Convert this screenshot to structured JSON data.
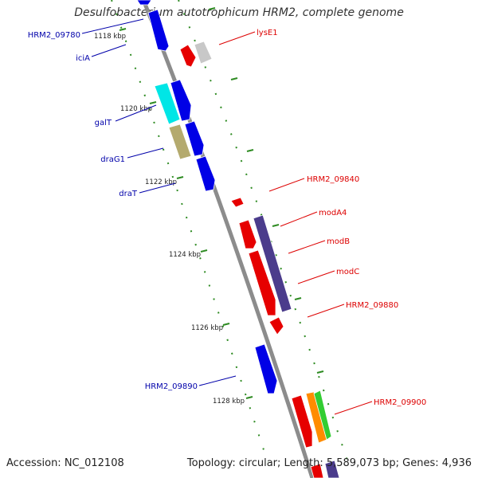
{
  "title": "Desulfobacterium autotrophicum HRM2, complete genome",
  "footer": {
    "accession": "Accession: NC_012108",
    "topology": "Topology: circular; Length: 5,589,073 bp; Genes: 4,936"
  },
  "colors": {
    "backbone": "#8c8c8c",
    "forward_strand": "#0000e6",
    "reverse_strand": "#e60000",
    "tick": "#2e8b22",
    "label_forward": "#0000aa",
    "label_reverse": "#dd0000"
  },
  "tick_labels": [
    "1118 kbp",
    "1120 kbp",
    "1122 kbp",
    "1124 kbp",
    "1126 kbp",
    "1128 kbp"
  ],
  "forward_labels": [
    "HRM2_09780",
    "iciA",
    "galT",
    "draG1",
    "draT",
    "HRM2_09890"
  ],
  "reverse_labels": [
    "lysE1",
    "HRM2_09840",
    "modA4",
    "modB",
    "modC",
    "HRM2_09880",
    "HRM2_09900"
  ],
  "genes": [
    {
      "id": "g0",
      "color": "#0000e6"
    },
    {
      "id": "g1",
      "color": "#0000e6"
    },
    {
      "id": "g2",
      "color": "#e60000"
    },
    {
      "id": "g3",
      "color": "#c8c8c8"
    },
    {
      "id": "g4",
      "color": "#00e6e6"
    },
    {
      "id": "g5",
      "color": "#0000e6"
    },
    {
      "id": "g6",
      "color": "#b4aa6e"
    },
    {
      "id": "g7",
      "color": "#0000e6"
    },
    {
      "id": "g8",
      "color": "#0000e6"
    },
    {
      "id": "g9",
      "color": "#e60000"
    },
    {
      "id": "g10",
      "color": "#e60000"
    },
    {
      "id": "g11",
      "color": "#4b3c8c"
    },
    {
      "id": "g12",
      "color": "#e60000"
    },
    {
      "id": "g13",
      "color": "#e60000"
    },
    {
      "id": "g14",
      "color": "#0000e6"
    },
    {
      "id": "g15",
      "color": "#e60000"
    },
    {
      "id": "g16",
      "color": "#ff8c00"
    },
    {
      "id": "g17",
      "color": "#32cd32"
    },
    {
      "id": "g18",
      "color": "#e60000"
    },
    {
      "id": "g19",
      "color": "#4b3c8c"
    }
  ]
}
